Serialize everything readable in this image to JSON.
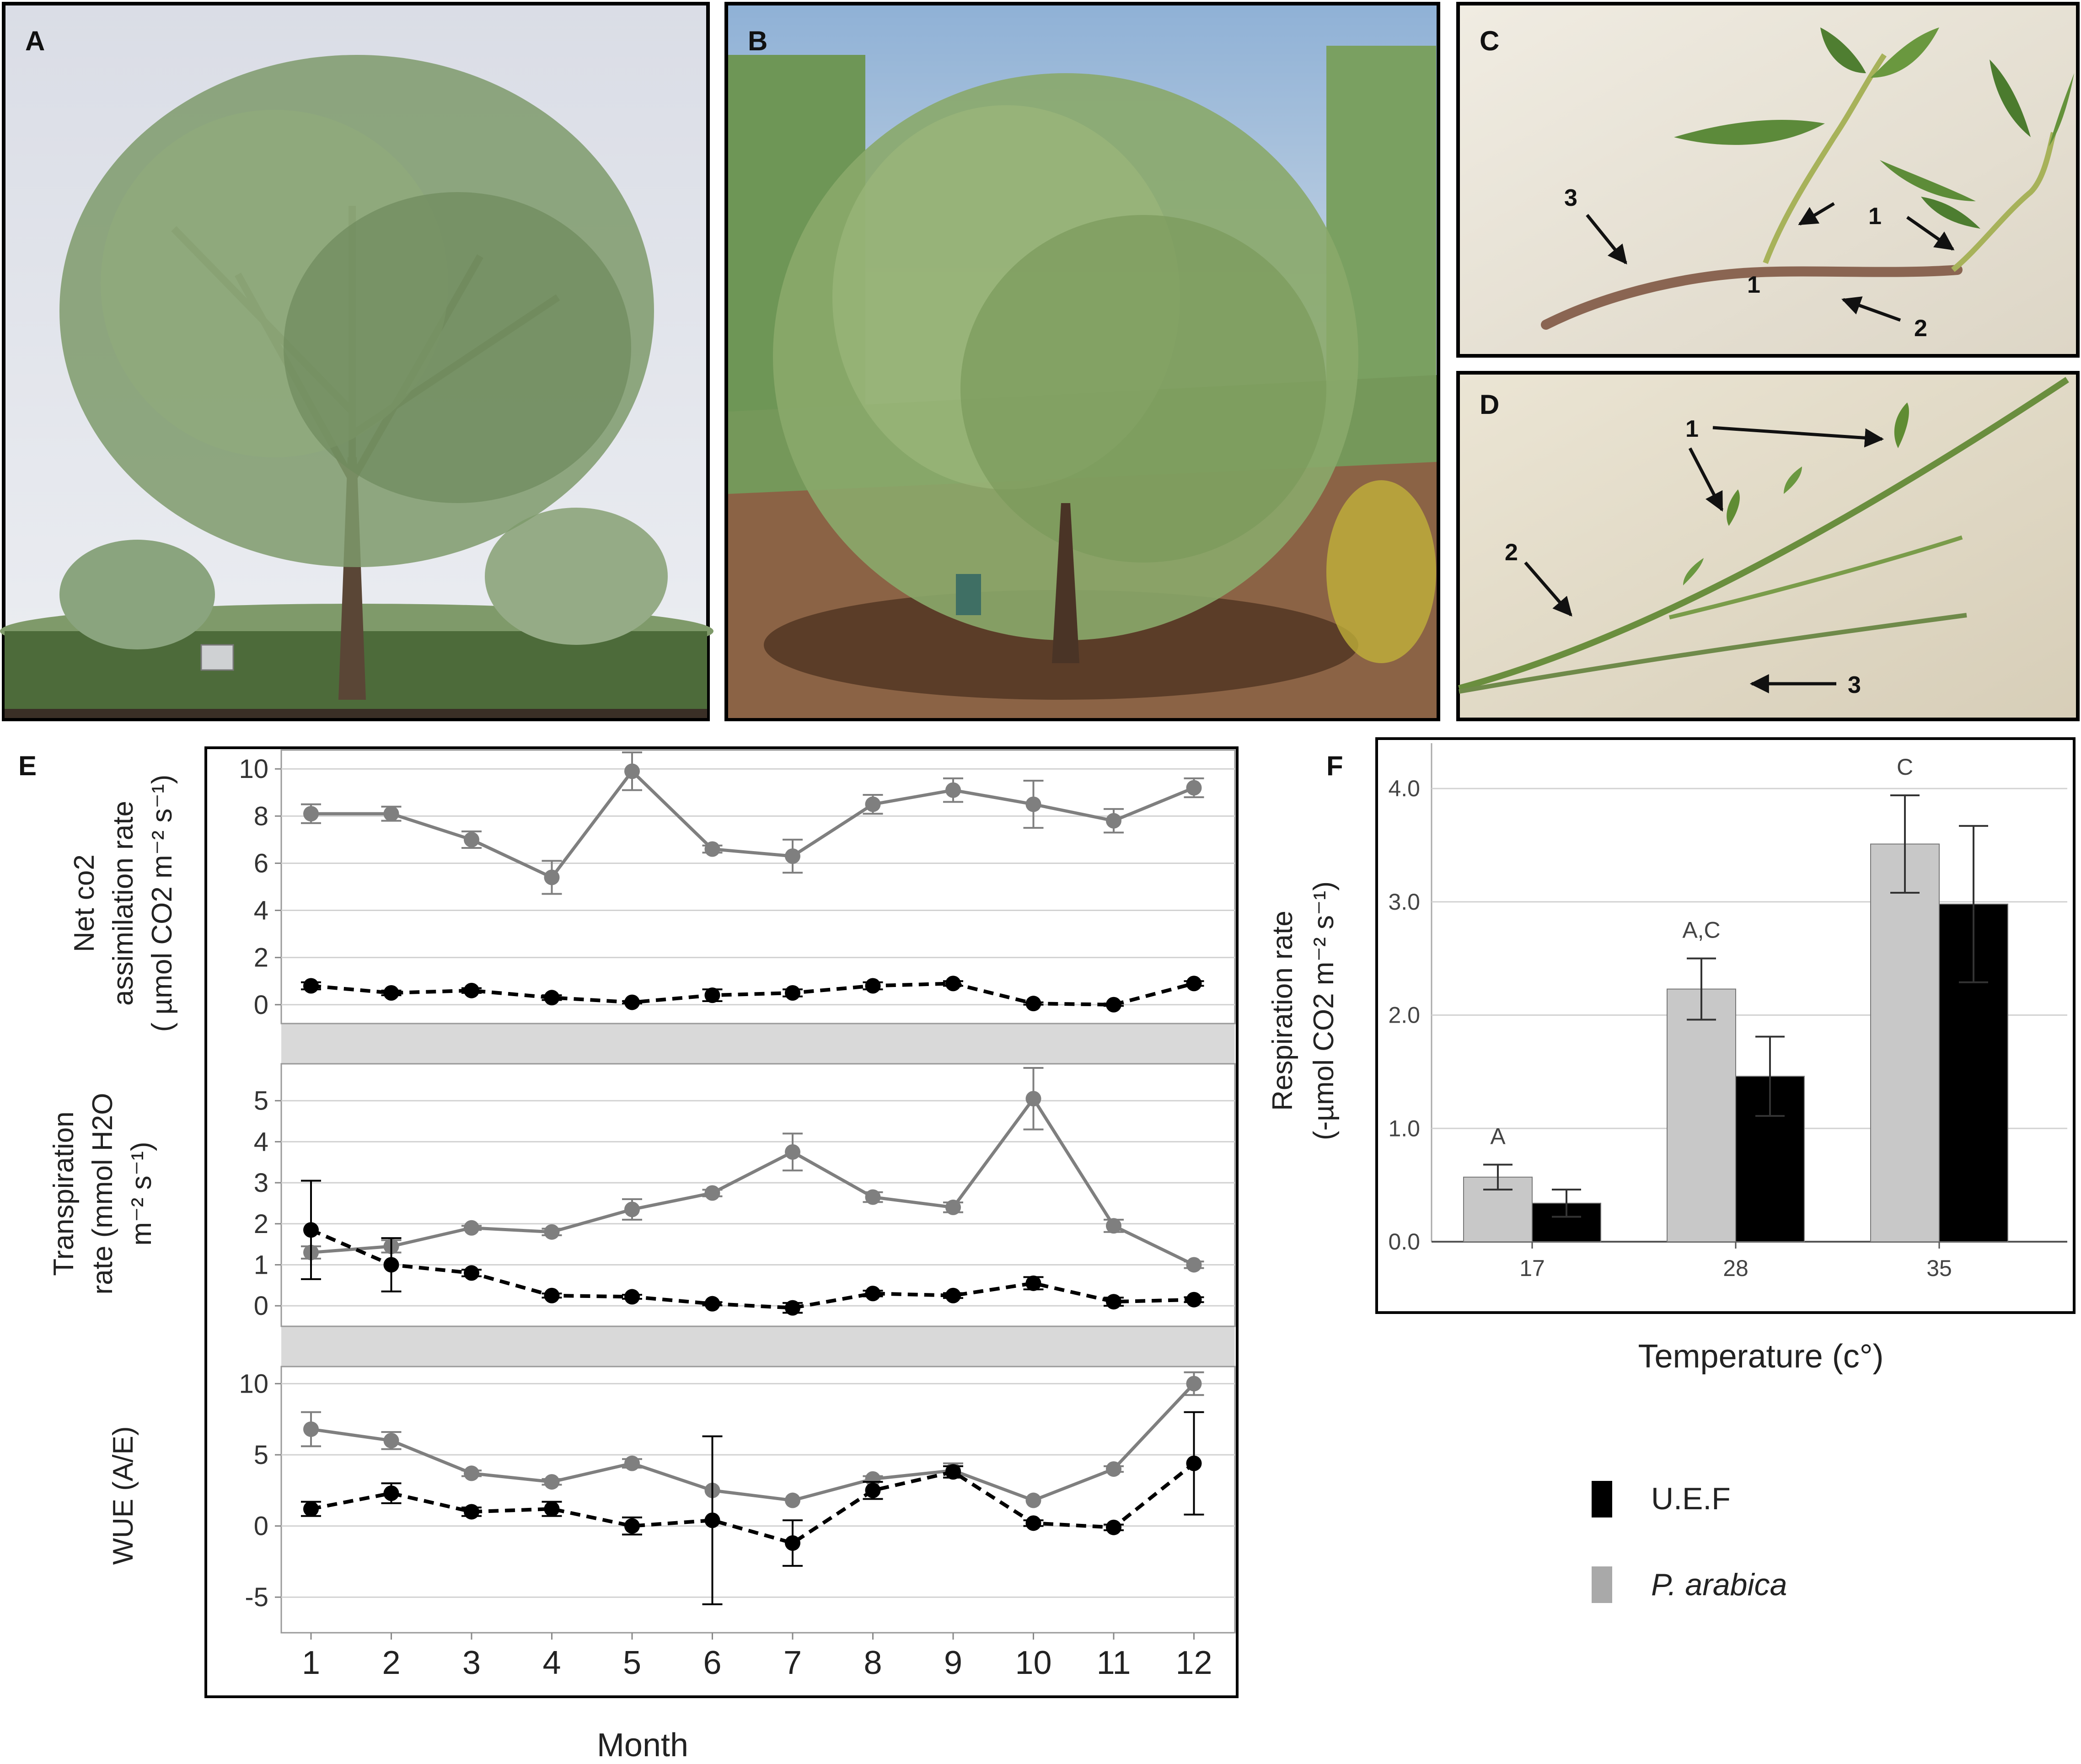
{
  "panels": {
    "A": {
      "letter": "A"
    },
    "B": {
      "letter": "B"
    },
    "C": {
      "letter": "C",
      "callouts": [
        "3",
        "1",
        "1",
        "2"
      ]
    },
    "D": {
      "letter": "D",
      "callouts": [
        "1",
        "2",
        "3"
      ]
    },
    "E": {
      "letter": "E",
      "xlabel": "Month"
    },
    "F": {
      "letter": "F",
      "xlabel": "Temperature (c°)"
    }
  },
  "chart_data": [
    {
      "type": "line",
      "panel": "E-top",
      "ylabel": [
        "Net co2",
        "assimilation rate",
        "( µmol CO2 m⁻² s⁻¹)"
      ],
      "x": [
        1,
        2,
        3,
        4,
        5,
        6,
        7,
        8,
        9,
        10,
        11,
        12
      ],
      "ylim": [
        -0.8,
        10.8
      ],
      "yticks": [
        "0",
        "2",
        "4",
        "6",
        "8",
        "10"
      ],
      "series": [
        {
          "style": "solid-gray",
          "values": [
            8.1,
            8.1,
            7.0,
            5.4,
            9.9,
            6.6,
            6.3,
            8.5,
            9.1,
            8.5,
            7.8,
            9.2
          ],
          "err": [
            0.4,
            0.3,
            0.35,
            0.7,
            0.8,
            0.15,
            0.7,
            0.4,
            0.5,
            1.0,
            0.5,
            0.4
          ]
        },
        {
          "style": "dashed-black",
          "values": [
            0.8,
            0.5,
            0.6,
            0.3,
            0.1,
            0.4,
            0.5,
            0.8,
            0.9,
            0.05,
            0.0,
            0.9
          ],
          "err": [
            0.15,
            0.1,
            0.1,
            0.1,
            0.05,
            0.25,
            0.15,
            0.15,
            0.1,
            0.05,
            0.05,
            0.1
          ]
        }
      ]
    },
    {
      "type": "line",
      "panel": "E-middle",
      "ylabel": [
        "Transpiration",
        "rate (mmol H2O",
        "m⁻² s⁻¹)"
      ],
      "x": [
        1,
        2,
        3,
        4,
        5,
        6,
        7,
        8,
        9,
        10,
        11,
        12
      ],
      "ylim": [
        -0.5,
        5.9
      ],
      "yticks": [
        "0",
        "1",
        "2",
        "3",
        "4",
        "5"
      ],
      "series": [
        {
          "style": "solid-gray",
          "values": [
            1.3,
            1.45,
            1.9,
            1.8,
            2.35,
            2.75,
            3.75,
            2.65,
            2.4,
            5.05,
            1.95,
            1.0
          ],
          "err": [
            0.15,
            0.15,
            0.05,
            0.08,
            0.25,
            0.08,
            0.45,
            0.12,
            0.12,
            0.75,
            0.15,
            0.08
          ]
        },
        {
          "style": "dashed-black",
          "values": [
            1.85,
            1.0,
            0.8,
            0.25,
            0.22,
            0.05,
            -0.05,
            0.3,
            0.25,
            0.55,
            0.1,
            0.15
          ],
          "err": [
            1.2,
            0.65,
            0.08,
            0.05,
            0.05,
            0.04,
            0.12,
            0.07,
            0.06,
            0.15,
            0.1,
            0.06
          ]
        }
      ]
    },
    {
      "type": "line",
      "panel": "E-bottom",
      "ylabel": [
        "WUE (A/E)"
      ],
      "x": [
        1,
        2,
        3,
        4,
        5,
        6,
        7,
        8,
        9,
        10,
        11,
        12
      ],
      "ylim": [
        -7.5,
        11.2
      ],
      "yticks": [
        "-5",
        "0",
        "5",
        "10"
      ],
      "series": [
        {
          "style": "solid-gray",
          "values": [
            6.8,
            6.0,
            3.7,
            3.1,
            4.4,
            2.5,
            1.8,
            3.3,
            3.9,
            1.8,
            4.0,
            10.0
          ],
          "err": [
            1.2,
            0.6,
            0.2,
            0.2,
            0.3,
            0.0,
            0.0,
            0.2,
            0.5,
            0.0,
            0.2,
            0.8
          ]
        },
        {
          "style": "dashed-black",
          "values": [
            1.2,
            2.3,
            1.0,
            1.2,
            0.0,
            0.4,
            -1.2,
            2.5,
            3.8,
            0.2,
            -0.1,
            4.4
          ],
          "err": [
            0.5,
            0.7,
            0.3,
            0.5,
            0.6,
            5.9,
            1.6,
            0.6,
            0.4,
            0.2,
            0.2,
            3.6
          ]
        }
      ]
    },
    {
      "type": "bar",
      "panel": "F",
      "ylabel": [
        "Respiration rate",
        "(-µmol CO2 m⁻² s⁻¹)"
      ],
      "categories": [
        "17",
        "28",
        "35"
      ],
      "ylim": [
        0,
        4.4
      ],
      "yticks": [
        "0.0",
        "1.0",
        "2.0",
        "3.0",
        "4.0"
      ],
      "series": [
        {
          "name": "P. arabica",
          "color": "#c8c8c8",
          "values": [
            0.57,
            2.23,
            3.51
          ],
          "err": [
            0.11,
            0.27,
            0.43
          ]
        },
        {
          "name": "U.E.F",
          "color": "#000000",
          "values": [
            0.34,
            1.46,
            2.98
          ],
          "err": [
            0.12,
            0.35,
            0.69
          ]
        }
      ],
      "annotations": [
        "A",
        "A,C",
        "C"
      ]
    }
  ],
  "legend": [
    {
      "label": "U.E.F",
      "color": "#000000",
      "italic": false
    },
    {
      "label": "P. arabica",
      "color": "#a9a9a9",
      "italic": true
    }
  ]
}
